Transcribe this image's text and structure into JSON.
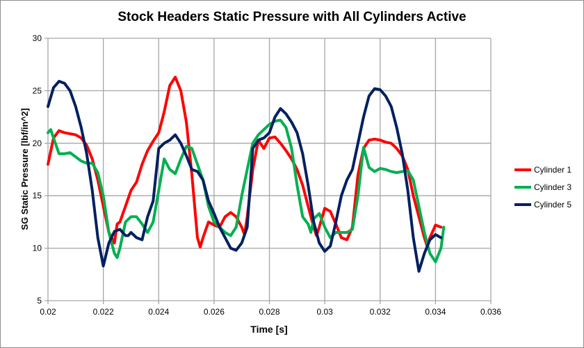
{
  "chart_data": {
    "type": "line",
    "title": "Stock Headers Static Pressure with All Cylinders Active",
    "xlabel": "Time [s]",
    "ylabel": "SG Static Pressure [lbf/in^2]",
    "xlim": [
      0.02,
      0.036
    ],
    "ylim": [
      5,
      30
    ],
    "xticks": [
      "0.02",
      "0.022",
      "0.024",
      "0.026",
      "0.028",
      "0.03",
      "0.032",
      "0.034",
      "0.036"
    ],
    "yticks": [
      "5",
      "10",
      "15",
      "20",
      "25",
      "30"
    ],
    "grid": true,
    "legend_position": "right",
    "series": [
      {
        "name": "Cylinder 1",
        "color": "#ff0000",
        "x": [
          0.02,
          0.0202,
          0.0204,
          0.0206,
          0.021,
          0.0212,
          0.0214,
          0.0216,
          0.0218,
          0.022,
          0.0222,
          0.0224,
          0.0225,
          0.0226,
          0.0228,
          0.023,
          0.0232,
          0.0234,
          0.0236,
          0.0238,
          0.024,
          0.0242,
          0.0244,
          0.0246,
          0.0248,
          0.025,
          0.0252,
          0.0254,
          0.0255,
          0.0256,
          0.0258,
          0.026,
          0.0262,
          0.0264,
          0.0266,
          0.0268,
          0.027,
          0.0271,
          0.0272,
          0.0274,
          0.0276,
          0.0278,
          0.028,
          0.0282,
          0.0284,
          0.0286,
          0.0288,
          0.029,
          0.0292,
          0.0294,
          0.0296,
          0.0297,
          0.0298,
          0.03,
          0.0302,
          0.0304,
          0.0306,
          0.0308,
          0.031,
          0.0312,
          0.0314,
          0.0316,
          0.0318,
          0.032,
          0.0322,
          0.0324,
          0.0326,
          0.0328,
          0.033,
          0.0332,
          0.0334,
          0.0336,
          0.0337,
          0.0338,
          0.034,
          0.0342
        ],
        "y": [
          18,
          20.5,
          21.2,
          21,
          20.8,
          20.5,
          19.8,
          18.5,
          16.5,
          14,
          11.5,
          10.5,
          12.3,
          12.5,
          14,
          15.5,
          16.3,
          18,
          19.3,
          20.2,
          21,
          23,
          25.5,
          26.3,
          25,
          22,
          17,
          11,
          10.1,
          11,
          12.5,
          12.2,
          12,
          13,
          13.4,
          13,
          12,
          11.3,
          13,
          17.5,
          20.3,
          19.5,
          20.5,
          20.6,
          20,
          19.3,
          18.5,
          17.5,
          16,
          14,
          12,
          11.2,
          12,
          13.8,
          13.5,
          12.3,
          11,
          10.8,
          12,
          17,
          19.5,
          20.3,
          20.4,
          20.3,
          20.1,
          20,
          19.5,
          18.8,
          17.5,
          15,
          13,
          11,
          10.2,
          11,
          12.2,
          12
        ]
      },
      {
        "name": "Cylinder 3",
        "color": "#00b050",
        "x": [
          0.02,
          0.0201,
          0.0202,
          0.0204,
          0.0206,
          0.0208,
          0.021,
          0.0212,
          0.0214,
          0.0216,
          0.0218,
          0.022,
          0.0222,
          0.0224,
          0.0225,
          0.0226,
          0.0228,
          0.023,
          0.0232,
          0.0234,
          0.0236,
          0.0238,
          0.024,
          0.0242,
          0.0244,
          0.0246,
          0.0248,
          0.025,
          0.0252,
          0.0254,
          0.0256,
          0.0258,
          0.026,
          0.0262,
          0.0264,
          0.0266,
          0.0268,
          0.027,
          0.0272,
          0.0274,
          0.0276,
          0.0278,
          0.028,
          0.0282,
          0.0284,
          0.0286,
          0.0288,
          0.029,
          0.0292,
          0.0294,
          0.0295,
          0.0296,
          0.0298,
          0.03,
          0.0302,
          0.0304,
          0.0306,
          0.0308,
          0.031,
          0.0312,
          0.0314,
          0.0316,
          0.0318,
          0.032,
          0.0322,
          0.0324,
          0.0326,
          0.0328,
          0.033,
          0.0332,
          0.0334,
          0.0336,
          0.0338,
          0.034,
          0.0342,
          0.0343
        ],
        "y": [
          21,
          21.3,
          20.5,
          19,
          19,
          19.1,
          18.7,
          18.3,
          18.1,
          18.1,
          17.2,
          15,
          11.5,
          9.5,
          9.1,
          10,
          12.5,
          13,
          13,
          12.3,
          11.5,
          12.5,
          15.5,
          18.5,
          17.5,
          17.1,
          18.5,
          19.7,
          19.5,
          18,
          16.5,
          14,
          12.5,
          12,
          11.5,
          11.2,
          12,
          15,
          17.5,
          20,
          20.8,
          21.3,
          21.8,
          22.1,
          22.2,
          21.5,
          19.5,
          16,
          13,
          12.3,
          11.5,
          12.8,
          13.3,
          12,
          11,
          11.5,
          11.5,
          11.5,
          11.8,
          15,
          19.6,
          17.7,
          17.3,
          17.6,
          17.5,
          17.3,
          17.2,
          17.3,
          17.4,
          16.5,
          14,
          11.5,
          9.5,
          8.7,
          10,
          12
        ]
      },
      {
        "name": "Cylinder 5",
        "color": "#002060",
        "x": [
          0.02,
          0.0202,
          0.0204,
          0.0206,
          0.0208,
          0.021,
          0.0212,
          0.0214,
          0.0216,
          0.0218,
          0.022,
          0.0222,
          0.0224,
          0.0226,
          0.0228,
          0.0229,
          0.023,
          0.0232,
          0.0234,
          0.0236,
          0.0238,
          0.024,
          0.0242,
          0.0244,
          0.0246,
          0.0248,
          0.025,
          0.0252,
          0.0254,
          0.0256,
          0.0258,
          0.026,
          0.0262,
          0.0264,
          0.0266,
          0.0268,
          0.027,
          0.0272,
          0.0274,
          0.0276,
          0.0278,
          0.028,
          0.0282,
          0.0284,
          0.0286,
          0.0288,
          0.029,
          0.0292,
          0.0294,
          0.0296,
          0.0298,
          0.03,
          0.0302,
          0.0304,
          0.0306,
          0.0308,
          0.031,
          0.0312,
          0.0314,
          0.0316,
          0.0318,
          0.032,
          0.0322,
          0.0324,
          0.0326,
          0.0328,
          0.033,
          0.0332,
          0.0334,
          0.0336,
          0.0338,
          0.034,
          0.0342
        ],
        "y": [
          23.5,
          25.3,
          25.9,
          25.7,
          25,
          23.5,
          21.5,
          19,
          15.5,
          11,
          8.3,
          10.5,
          11.6,
          11.8,
          11.2,
          11.2,
          11.5,
          11,
          10.8,
          13,
          14.5,
          19.5,
          20,
          20.3,
          20.8,
          20,
          18.8,
          17.5,
          17.3,
          16.5,
          14.5,
          13.3,
          12,
          11,
          10,
          9.8,
          10.5,
          12,
          19.5,
          20.3,
          20.5,
          21,
          22.5,
          23.3,
          22.8,
          22,
          21,
          19,
          16,
          12.5,
          10.5,
          9.7,
          10.2,
          12.5,
          15,
          16.5,
          17.5,
          20,
          22.5,
          24.5,
          25.2,
          25.1,
          24.5,
          23.5,
          21.5,
          19,
          15.5,
          11,
          7.8,
          9.5,
          10.8,
          11.3,
          11
        ]
      }
    ]
  }
}
